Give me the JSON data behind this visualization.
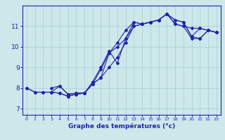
{
  "xlabel": "Graphe des températures (°c)",
  "bg_color": "#cce8ea",
  "line_color": "#2222aa",
  "grid_color": "#aacccc",
  "axis_color": "#2222aa",
  "xlim": [
    -0.5,
    23.5
  ],
  "ylim": [
    6.7,
    12.0
  ],
  "xticks": [
    0,
    1,
    2,
    3,
    4,
    5,
    6,
    7,
    8,
    9,
    10,
    11,
    12,
    13,
    14,
    15,
    16,
    17,
    18,
    19,
    20,
    21,
    22,
    23
  ],
  "yticks": [
    7,
    8,
    9,
    10,
    11
  ],
  "line1_x": [
    0,
    1,
    2,
    3,
    4,
    5,
    6,
    7,
    8,
    9,
    10,
    11,
    12,
    13,
    14,
    15,
    16,
    17,
    18,
    19,
    20,
    21,
    22,
    23
  ],
  "line1_y": [
    8.0,
    7.8,
    7.8,
    7.8,
    7.75,
    7.6,
    7.7,
    7.75,
    8.2,
    8.5,
    9.7,
    10.0,
    10.4,
    11.2,
    11.1,
    11.2,
    11.3,
    11.6,
    11.1,
    11.0,
    10.9,
    10.9,
    10.8,
    10.7
  ],
  "line2_x": [
    0,
    1,
    2,
    3,
    4,
    5,
    6,
    7,
    8,
    9,
    10,
    11,
    12,
    13,
    14,
    15,
    16,
    17,
    18,
    19,
    20,
    21,
    22,
    23
  ],
  "line2_y": [
    8.0,
    7.8,
    7.8,
    7.8,
    7.75,
    7.6,
    7.7,
    7.75,
    8.2,
    8.9,
    9.7,
    10.2,
    10.8,
    11.2,
    11.1,
    11.2,
    11.3,
    11.6,
    11.3,
    11.2,
    10.5,
    10.4,
    10.8,
    10.7
  ],
  "line3_x": [
    3,
    4,
    5,
    6,
    7,
    8,
    9,
    10,
    11,
    12,
    13,
    14,
    15,
    16,
    17,
    18,
    19,
    20,
    21,
    22,
    23
  ],
  "line3_y": [
    8.0,
    8.1,
    7.7,
    7.75,
    7.75,
    8.2,
    8.5,
    9.0,
    9.5,
    10.2,
    11.0,
    11.1,
    11.2,
    11.3,
    11.6,
    11.1,
    11.0,
    10.4,
    10.4,
    10.8,
    10.7
  ],
  "line4_x": [
    3,
    4,
    5,
    6,
    7,
    8,
    9,
    10,
    11,
    12,
    13,
    14,
    15,
    16,
    17,
    18,
    19,
    20,
    21,
    22,
    23
  ],
  "line4_y": [
    7.8,
    8.1,
    7.7,
    7.75,
    7.75,
    8.3,
    9.0,
    9.8,
    9.2,
    10.4,
    11.0,
    11.1,
    11.2,
    11.3,
    11.6,
    11.3,
    11.2,
    10.5,
    10.9,
    10.8,
    10.7
  ]
}
